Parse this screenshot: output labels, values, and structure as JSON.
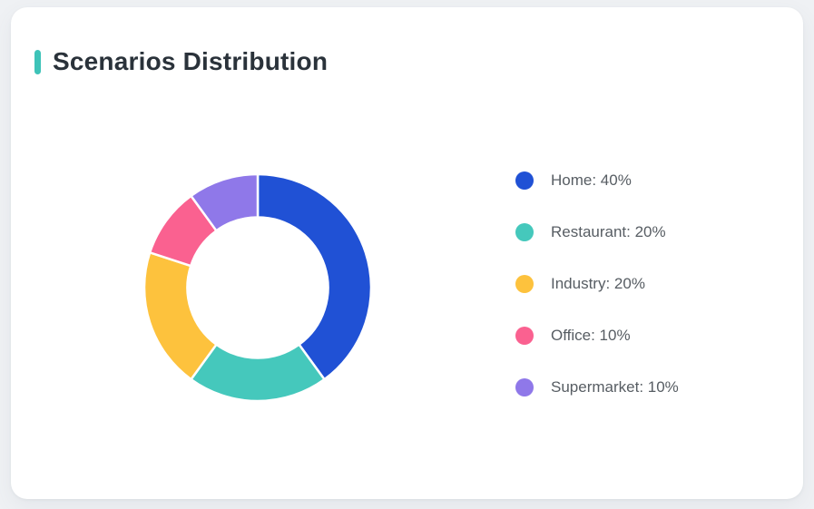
{
  "page": {
    "background": "#eff1f4"
  },
  "card": {
    "background": "#ffffff"
  },
  "header": {
    "accent_color": "#3ec3b8",
    "title": "Scenarios Distribution"
  },
  "chart_data": {
    "type": "pie",
    "variant": "donut",
    "title": "Scenarios Distribution",
    "legend_position": "right",
    "start_angle_deg": 0,
    "direction": "clockwise",
    "inner_radius_ratio": 0.62,
    "segment_gap_color": "#ffffff",
    "segments": [
      {
        "label": "Home",
        "value": 40,
        "unit": "%",
        "color": "#2051d5",
        "legend_text": "Home: 40%"
      },
      {
        "label": "Restaurant",
        "value": 20,
        "unit": "%",
        "color": "#45c8bc",
        "legend_text": "Restaurant: 20%"
      },
      {
        "label": "Industry",
        "value": 20,
        "unit": "%",
        "color": "#fdc23d",
        "legend_text": "Industry: 20%"
      },
      {
        "label": "Office",
        "value": 10,
        "unit": "%",
        "color": "#fa6190",
        "legend_text": "Office: 10%"
      },
      {
        "label": "Supermarket",
        "value": 10,
        "unit": "%",
        "color": "#8f78e9",
        "legend_text": "Supermarket: 10%"
      }
    ]
  }
}
